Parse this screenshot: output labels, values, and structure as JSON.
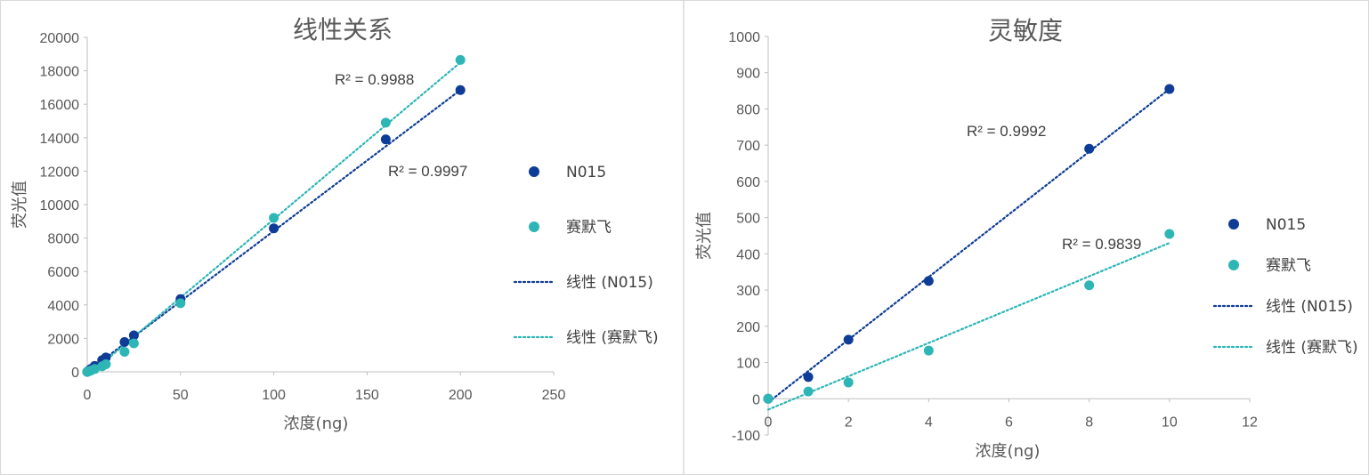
{
  "chart_data": [
    {
      "type": "scatter",
      "title": "线性关系",
      "xlabel": "浓度(ng)",
      "ylabel": "荧光值",
      "xlim": [
        0,
        250
      ],
      "ylim": [
        0,
        20000
      ],
      "xticks": [
        0,
        50,
        100,
        150,
        200,
        250
      ],
      "yticks": [
        0,
        2000,
        4000,
        6000,
        8000,
        10000,
        12000,
        14000,
        16000,
        18000,
        20000
      ],
      "grid": false,
      "legend_position": "right",
      "series": [
        {
          "name": "N015",
          "color": "#0e3c96",
          "points": [
            [
              0,
              0
            ],
            [
              0.5,
              40
            ],
            [
              1,
              85
            ],
            [
              2,
              170
            ],
            [
              4,
              350
            ],
            [
              8,
              700
            ],
            [
              10,
              860
            ],
            [
              20,
              1780
            ],
            [
              25,
              2180
            ],
            [
              50,
              4350
            ],
            [
              100,
              8580
            ],
            [
              160,
              13900
            ],
            [
              200,
              16850
            ]
          ],
          "trendline": {
            "label": "线性 (N015)",
            "r2": "R² = 0.9997",
            "x_range": [
              0,
              200
            ],
            "y_range": [
              0,
              16850
            ]
          }
        },
        {
          "name": "赛默飞",
          "color": "#2eb5b5",
          "points": [
            [
              0,
              0
            ],
            [
              0.5,
              20
            ],
            [
              1,
              40
            ],
            [
              2,
              80
            ],
            [
              4,
              170
            ],
            [
              8,
              330
            ],
            [
              10,
              450
            ],
            [
              20,
              1200
            ],
            [
              25,
              1700
            ],
            [
              50,
              4100
            ],
            [
              100,
              9200
            ],
            [
              160,
              14900
            ],
            [
              200,
              18650
            ]
          ],
          "trendline": {
            "label": "线性 (赛默飞)",
            "r2": "R² = 0.9988",
            "x_range": [
              0,
              200
            ],
            "y_range": [
              -250,
              18500
            ]
          }
        }
      ]
    },
    {
      "type": "scatter",
      "title": "灵敏度",
      "xlabel": "浓度(ng)",
      "ylabel": "荧光值",
      "xlim": [
        0,
        12
      ],
      "ylim": [
        -100,
        1000
      ],
      "xticks": [
        0,
        2,
        4,
        6,
        8,
        10,
        12
      ],
      "yticks": [
        -100,
        0,
        100,
        200,
        300,
        400,
        500,
        600,
        700,
        800,
        900,
        1000
      ],
      "grid": false,
      "legend_position": "right",
      "series": [
        {
          "name": "N015",
          "color": "#0e3c96",
          "points": [
            [
              0,
              0
            ],
            [
              1,
              60
            ],
            [
              2,
              163
            ],
            [
              4,
              325
            ],
            [
              8,
              690
            ],
            [
              10,
              855
            ]
          ],
          "trendline": {
            "label": "线性 (N015)",
            "r2": "R² = 0.9992",
            "x_range": [
              0,
              10
            ],
            "y_range": [
              -10,
              855
            ]
          }
        },
        {
          "name": "赛默飞",
          "color": "#2eb5b5",
          "points": [
            [
              0,
              0
            ],
            [
              1,
              20
            ],
            [
              2,
              45
            ],
            [
              4,
              133
            ],
            [
              8,
              313
            ],
            [
              10,
              455
            ]
          ],
          "trendline": {
            "label": "线性 (赛默飞)",
            "r2": "R² = 0.9839",
            "x_range": [
              0,
              10
            ],
            "y_range": [
              -30,
              430
            ]
          }
        }
      ]
    }
  ]
}
